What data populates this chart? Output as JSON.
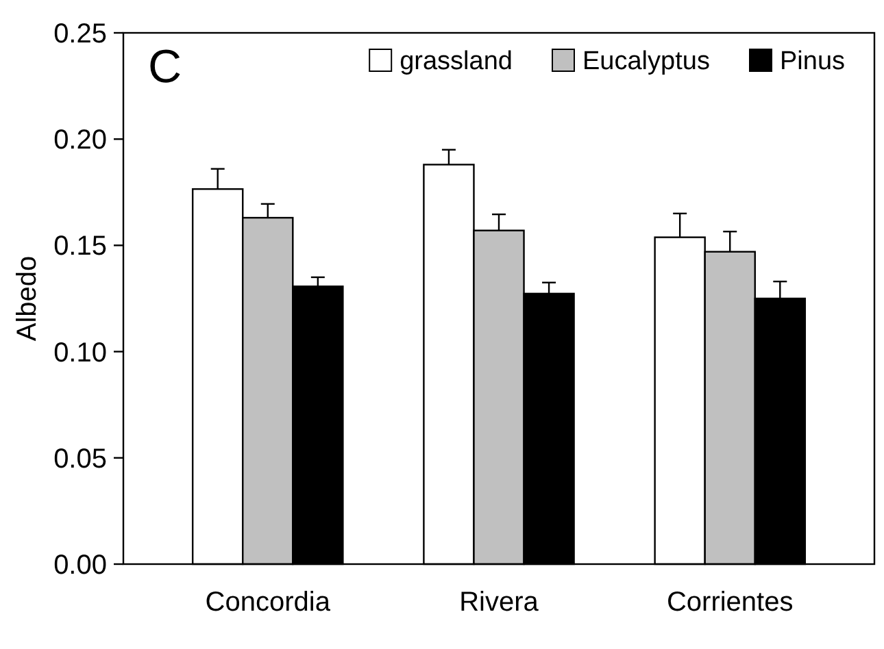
{
  "chart_data": {
    "type": "bar",
    "ylabel": "Albedo",
    "annotations": [
      "C"
    ],
    "categories": [
      "Concordia",
      "Rivera",
      "Corrientes"
    ],
    "series": [
      {
        "name": "grassland",
        "color": "#ffffff",
        "values": [
          0.1765,
          0.188,
          0.1538
        ],
        "errors": [
          [
            0.1765,
            0.186
          ],
          [
            0.188,
            0.195
          ],
          [
            0.1538,
            0.165
          ]
        ]
      },
      {
        "name": "Eucalyptus",
        "color": "#c0c0c0",
        "values": [
          0.163,
          0.157,
          0.147
        ],
        "errors": [
          [
            0.163,
            0.1695
          ],
          [
            0.157,
            0.1646
          ],
          [
            0.147,
            0.1565
          ]
        ]
      },
      {
        "name": "Pinus",
        "color": "#000000",
        "values": [
          0.1307,
          0.1273,
          0.125
        ],
        "errors": [
          [
            0.1307,
            0.135
          ],
          [
            0.1273,
            0.1325
          ],
          [
            0.125,
            0.133
          ]
        ]
      }
    ],
    "ylim": [
      0,
      0.25
    ],
    "yticks": [
      {
        "value": 0,
        "label": "0.00"
      },
      {
        "value": 0.05,
        "label": "0.05"
      },
      {
        "value": 0.1,
        "label": "0.10"
      },
      {
        "value": 0.15,
        "label": "0.15"
      },
      {
        "value": 0.2,
        "label": "0.20"
      },
      {
        "value": 0.25,
        "label": "0.25"
      }
    ],
    "grid": false,
    "legend": "top right"
  }
}
